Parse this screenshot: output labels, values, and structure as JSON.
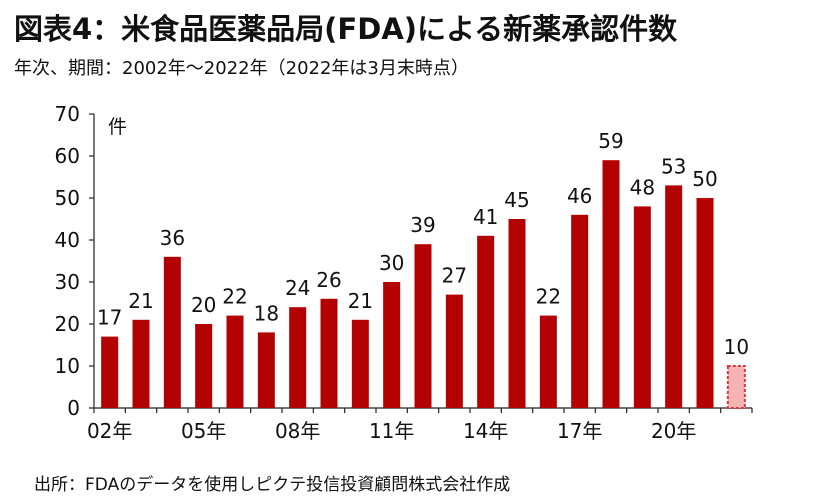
{
  "title": "図表4：米食品医薬品局(FDA)による新薬承認件数",
  "subtitle": "年次、期間：2002年～2022年（2022年は3月末時点）",
  "source": "出所：FDAのデータを使用しピクテ投信投資顧問株式会社作成",
  "colors": {
    "bar": "#b30000",
    "partial_fill": "#f6b3b3",
    "partial_stroke": "#d93a3a"
  },
  "chart_data": {
    "type": "bar",
    "unit_label": "件",
    "categories": [
      "02年",
      "03年",
      "04年",
      "05年",
      "06年",
      "07年",
      "08年",
      "09年",
      "10年",
      "11年",
      "12年",
      "13年",
      "14年",
      "15年",
      "16年",
      "17年",
      "18年",
      "19年",
      "20年",
      "21年",
      "22年"
    ],
    "x_tick_labels": [
      "02年",
      "05年",
      "08年",
      "11年",
      "14年",
      "17年",
      "20年"
    ],
    "values": [
      17,
      21,
      36,
      20,
      22,
      18,
      24,
      26,
      21,
      30,
      39,
      27,
      41,
      45,
      22,
      46,
      59,
      48,
      53,
      50,
      10
    ],
    "partial_last": true,
    "ylim": [
      0,
      70
    ],
    "yticks": [
      0,
      10,
      20,
      30,
      40,
      50,
      60,
      70
    ],
    "grid": false
  }
}
